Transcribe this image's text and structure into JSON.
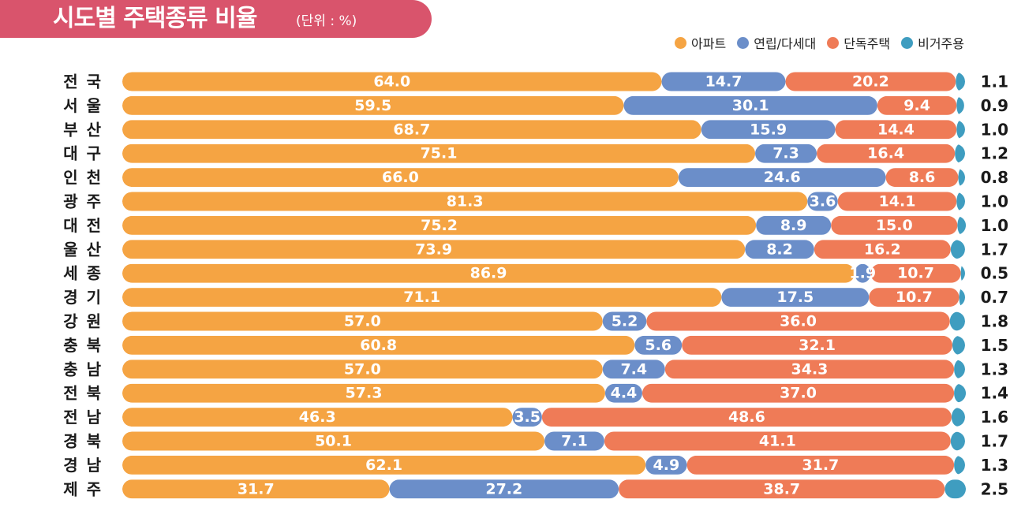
{
  "header": {
    "title": "시도별 주택종류 비율",
    "unit": "(단위 : %)"
  },
  "legend": {
    "items": [
      {
        "label": "아파트",
        "color": "#f5a443"
      },
      {
        "label": "연립/다세대",
        "color": "#6b8ec9"
      },
      {
        "label": "단독주택",
        "color": "#ef7b57"
      },
      {
        "label": "비거주용",
        "color": "#3f9dc0"
      }
    ]
  },
  "chart_data": {
    "type": "bar",
    "orientation": "horizontal",
    "stacked": true,
    "title": "시도별 주택종류 비율",
    "unit": "(단위 : %)",
    "categories": [
      "전 국",
      "서 울",
      "부 산",
      "대 구",
      "인 천",
      "광 주",
      "대 전",
      "울 산",
      "세 종",
      "경 기",
      "강 원",
      "충 북",
      "충 남",
      "전 북",
      "전 남",
      "경 북",
      "경 남",
      "제 주"
    ],
    "series": [
      {
        "name": "아파트",
        "color": "#f5a443",
        "values": [
          64.0,
          59.5,
          68.7,
          75.1,
          66.0,
          81.3,
          75.2,
          73.9,
          86.9,
          71.1,
          57.0,
          60.8,
          57.0,
          57.3,
          46.3,
          50.1,
          62.1,
          31.7
        ]
      },
      {
        "name": "연립/다세대",
        "color": "#6b8ec9",
        "values": [
          14.7,
          30.1,
          15.9,
          7.3,
          24.6,
          3.6,
          8.9,
          8.2,
          1.9,
          17.5,
          5.2,
          5.6,
          7.4,
          4.4,
          3.5,
          7.1,
          4.9,
          27.2
        ]
      },
      {
        "name": "단독주택",
        "color": "#ef7b57",
        "values": [
          20.2,
          9.4,
          14.4,
          16.4,
          8.6,
          14.1,
          15.0,
          16.2,
          10.7,
          10.7,
          36.0,
          32.1,
          34.3,
          37.0,
          48.6,
          41.1,
          31.7,
          38.7
        ]
      },
      {
        "name": "비거주용",
        "color": "#3f9dc0",
        "values": [
          1.1,
          0.9,
          1.0,
          1.2,
          0.8,
          1.0,
          1.0,
          1.7,
          0.5,
          0.7,
          1.8,
          1.5,
          1.3,
          1.4,
          1.6,
          1.7,
          1.3,
          2.5
        ]
      }
    ],
    "xlim": [
      0,
      100
    ],
    "grid": false,
    "legend_position": "top-right"
  }
}
